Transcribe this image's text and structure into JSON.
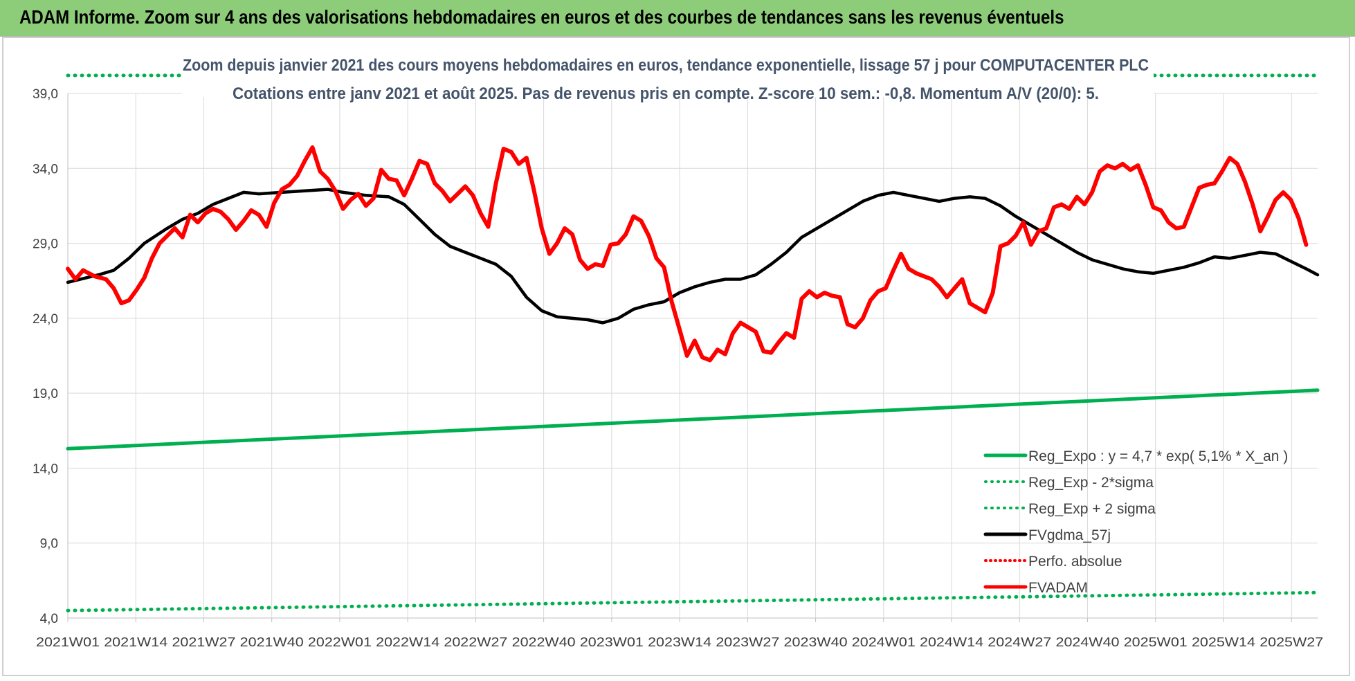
{
  "page_title": "ADAM Informe. Zoom sur 4 ans des valorisations hebdomadaires en euros et des courbes de tendances sans les revenus éventuels",
  "colors": {
    "header_bg": "#8dcd7a",
    "price": "#ff0000",
    "mma": "#000000",
    "regression": "#00b050",
    "axis_text": "#404040",
    "title_text": "#44546a"
  },
  "chart_data": {
    "type": "line",
    "title": "Zoom depuis janvier 2021 des cours moyens hebdomadaires en euros, tendance exponentielle, lissage 57 j pour COMPUTACENTER PLC",
    "subtitle": "Cotations entre janv 2021 et août 2025.  Pas de revenus pris en compte. Z-score 10 sem.: -0,8. Momentum A/V (20/0): 5.",
    "ylim": [
      4,
      39
    ],
    "yticks": [
      "4,0",
      "9,0",
      "14,0",
      "19,0",
      "24,0",
      "29,0",
      "34,0",
      "39,0"
    ],
    "xticks": [
      "2021W01",
      "2021W14",
      "2021W27",
      "2021W40",
      "2022W01",
      "2022W14",
      "2022W27",
      "2022W40",
      "2023W01",
      "2023W14",
      "2023W27",
      "2023W40",
      "2024W01",
      "2024W14",
      "2024W27",
      "2024W40",
      "2025W01",
      "2025W14",
      "2025W27"
    ],
    "grid": true,
    "legend_position": "bottom-right",
    "n_weeks": 240,
    "series": [
      {
        "name": "Reg_Expo : y = 4,7 * exp( 5,1% *  X_an )",
        "color": "#00b050",
        "style": "solid",
        "points": [
          [
            0,
            15.3
          ],
          [
            239,
            19.2
          ]
        ]
      },
      {
        "name": "Reg_Exp - 2*sigma",
        "color": "#00b050",
        "style": "dotted",
        "points": [
          [
            0,
            4.5
          ],
          [
            239,
            5.7
          ]
        ]
      },
      {
        "name": "Reg_Exp + 2 sigma",
        "color": "#00b050",
        "style": "dotted",
        "points": [
          [
            0,
            40.2
          ],
          [
            239,
            40.2
          ]
        ]
      },
      {
        "name": "FVgdma_57j",
        "color": "#000000",
        "style": "solid",
        "points": [
          [
            0,
            26.4
          ],
          [
            8,
            26.9
          ],
          [
            12,
            27.2
          ],
          [
            16,
            28.0
          ],
          [
            20,
            29.0
          ],
          [
            26,
            30.0
          ],
          [
            30,
            30.6
          ],
          [
            34,
            31.0
          ],
          [
            38,
            31.6
          ],
          [
            42,
            32.0
          ],
          [
            46,
            32.4
          ],
          [
            50,
            32.3
          ],
          [
            56,
            32.4
          ],
          [
            62,
            32.5
          ],
          [
            68,
            32.6
          ],
          [
            72,
            32.4
          ],
          [
            78,
            32.2
          ],
          [
            84,
            32.1
          ],
          [
            88,
            31.6
          ],
          [
            92,
            30.6
          ],
          [
            96,
            29.6
          ],
          [
            100,
            28.8
          ],
          [
            104,
            28.4
          ],
          [
            108,
            28.0
          ],
          [
            112,
            27.6
          ],
          [
            116,
            26.8
          ],
          [
            120,
            25.4
          ],
          [
            124,
            24.5
          ],
          [
            128,
            24.1
          ],
          [
            132,
            24.0
          ],
          [
            136,
            23.9
          ],
          [
            140,
            23.7
          ],
          [
            144,
            24.0
          ],
          [
            148,
            24.6
          ],
          [
            152,
            24.9
          ],
          [
            156,
            25.1
          ],
          [
            160,
            25.7
          ],
          [
            164,
            26.1
          ],
          [
            168,
            26.4
          ],
          [
            172,
            26.6
          ],
          [
            176,
            26.6
          ],
          [
            180,
            26.9
          ],
          [
            184,
            27.6
          ],
          [
            188,
            28.4
          ],
          [
            192,
            29.4
          ],
          [
            196,
            30.0
          ],
          [
            200,
            30.6
          ],
          [
            204,
            31.2
          ],
          [
            208,
            31.8
          ],
          [
            212,
            32.2
          ],
          [
            216,
            32.4
          ],
          [
            220,
            32.2
          ],
          [
            224,
            32.0
          ],
          [
            228,
            31.8
          ],
          [
            232,
            32.0
          ],
          [
            236,
            32.1
          ],
          [
            240,
            32.0
          ],
          [
            244,
            31.5
          ],
          [
            248,
            30.8
          ],
          [
            252,
            30.2
          ],
          [
            256,
            29.6
          ],
          [
            260,
            29.0
          ],
          [
            264,
            28.4
          ],
          [
            268,
            27.9
          ],
          [
            272,
            27.6
          ],
          [
            276,
            27.3
          ],
          [
            280,
            27.1
          ],
          [
            284,
            27.0
          ],
          [
            288,
            27.2
          ],
          [
            292,
            27.4
          ],
          [
            296,
            27.7
          ],
          [
            300,
            28.1
          ],
          [
            304,
            28.0
          ],
          [
            308,
            28.2
          ],
          [
            312,
            28.4
          ],
          [
            316,
            28.3
          ],
          [
            320,
            27.8
          ],
          [
            324,
            27.3
          ],
          [
            327,
            26.9
          ]
        ]
      },
      {
        "name": "FVADAM",
        "color": "#ff0000",
        "style": "solid",
        "points": [
          [
            0,
            27.3
          ],
          [
            2,
            26.6
          ],
          [
            4,
            27.2
          ],
          [
            7,
            26.8
          ],
          [
            10,
            26.6
          ],
          [
            12,
            26.0
          ],
          [
            14,
            25.0
          ],
          [
            16,
            25.2
          ],
          [
            18,
            25.9
          ],
          [
            20,
            26.7
          ],
          [
            22,
            28.0
          ],
          [
            24,
            29.0
          ],
          [
            26,
            29.5
          ],
          [
            28,
            30.0
          ],
          [
            30,
            29.4
          ],
          [
            32,
            30.9
          ],
          [
            34,
            30.4
          ],
          [
            36,
            31.0
          ],
          [
            38,
            31.3
          ],
          [
            40,
            31.1
          ],
          [
            42,
            30.6
          ],
          [
            44,
            29.9
          ],
          [
            46,
            30.5
          ],
          [
            48,
            31.2
          ],
          [
            50,
            30.9
          ],
          [
            52,
            30.1
          ],
          [
            54,
            31.7
          ],
          [
            56,
            32.6
          ],
          [
            58,
            32.9
          ],
          [
            60,
            33.5
          ],
          [
            62,
            34.5
          ],
          [
            64,
            35.4
          ],
          [
            66,
            33.8
          ],
          [
            68,
            33.3
          ],
          [
            70,
            32.5
          ],
          [
            72,
            31.3
          ],
          [
            74,
            31.9
          ],
          [
            76,
            32.3
          ],
          [
            78,
            31.5
          ],
          [
            80,
            32.0
          ],
          [
            82,
            33.9
          ],
          [
            84,
            33.3
          ],
          [
            86,
            33.2
          ],
          [
            88,
            32.2
          ],
          [
            90,
            33.3
          ],
          [
            92,
            34.5
          ],
          [
            94,
            34.3
          ],
          [
            96,
            33.0
          ],
          [
            98,
            32.5
          ],
          [
            100,
            31.8
          ],
          [
            102,
            32.3
          ],
          [
            104,
            32.8
          ],
          [
            106,
            32.2
          ],
          [
            108,
            31.0
          ],
          [
            110,
            30.1
          ],
          [
            112,
            33.0
          ],
          [
            114,
            35.3
          ],
          [
            116,
            35.1
          ],
          [
            118,
            34.3
          ],
          [
            120,
            34.7
          ],
          [
            122,
            32.5
          ],
          [
            124,
            30.0
          ],
          [
            126,
            28.3
          ],
          [
            128,
            29.0
          ],
          [
            130,
            30.0
          ],
          [
            132,
            29.6
          ],
          [
            134,
            27.9
          ],
          [
            136,
            27.3
          ],
          [
            138,
            27.6
          ],
          [
            140,
            27.5
          ],
          [
            142,
            28.9
          ],
          [
            144,
            29.0
          ],
          [
            146,
            29.6
          ],
          [
            148,
            30.8
          ],
          [
            150,
            30.5
          ],
          [
            152,
            29.5
          ],
          [
            154,
            28.0
          ],
          [
            156,
            27.4
          ],
          [
            158,
            25.1
          ],
          [
            160,
            23.3
          ],
          [
            162,
            21.5
          ],
          [
            164,
            22.5
          ],
          [
            166,
            21.4
          ],
          [
            168,
            21.2
          ],
          [
            170,
            21.9
          ],
          [
            172,
            21.6
          ],
          [
            174,
            23.0
          ],
          [
            176,
            23.7
          ],
          [
            178,
            23.4
          ],
          [
            180,
            23.1
          ],
          [
            182,
            21.8
          ],
          [
            184,
            21.7
          ],
          [
            186,
            22.4
          ],
          [
            188,
            23.0
          ],
          [
            190,
            22.7
          ],
          [
            192,
            25.3
          ],
          [
            194,
            25.8
          ],
          [
            196,
            25.4
          ],
          [
            198,
            25.7
          ],
          [
            200,
            25.5
          ],
          [
            202,
            25.4
          ],
          [
            204,
            23.6
          ],
          [
            206,
            23.4
          ],
          [
            208,
            24.0
          ],
          [
            210,
            25.2
          ],
          [
            212,
            25.8
          ],
          [
            214,
            26.0
          ],
          [
            216,
            27.2
          ],
          [
            218,
            28.3
          ],
          [
            220,
            27.3
          ],
          [
            222,
            27.0
          ],
          [
            224,
            26.8
          ],
          [
            226,
            26.6
          ],
          [
            228,
            26.1
          ],
          [
            230,
            25.4
          ],
          [
            232,
            26.0
          ],
          [
            234,
            26.6
          ],
          [
            236,
            25.0
          ],
          [
            238,
            24.7
          ],
          [
            240,
            24.4
          ],
          [
            242,
            25.7
          ],
          [
            244,
            28.8
          ],
          [
            246,
            29.0
          ],
          [
            248,
            29.5
          ],
          [
            250,
            30.4
          ],
          [
            252,
            28.9
          ],
          [
            254,
            29.8
          ],
          [
            256,
            30.0
          ],
          [
            258,
            31.4
          ],
          [
            260,
            31.6
          ],
          [
            262,
            31.3
          ],
          [
            264,
            32.1
          ],
          [
            266,
            31.6
          ],
          [
            268,
            32.4
          ],
          [
            270,
            33.8
          ],
          [
            272,
            34.2
          ],
          [
            274,
            34.0
          ],
          [
            276,
            34.3
          ],
          [
            278,
            33.9
          ],
          [
            280,
            34.2
          ],
          [
            282,
            32.9
          ],
          [
            284,
            31.4
          ],
          [
            286,
            31.2
          ],
          [
            288,
            30.4
          ],
          [
            290,
            30.0
          ],
          [
            292,
            30.1
          ],
          [
            294,
            31.4
          ],
          [
            296,
            32.7
          ],
          [
            298,
            32.9
          ],
          [
            300,
            33.0
          ],
          [
            302,
            33.8
          ],
          [
            304,
            34.7
          ],
          [
            306,
            34.3
          ],
          [
            308,
            33.1
          ],
          [
            310,
            31.6
          ],
          [
            312,
            29.8
          ],
          [
            314,
            30.8
          ],
          [
            316,
            31.9
          ],
          [
            318,
            32.4
          ],
          [
            320,
            31.9
          ],
          [
            322,
            30.7
          ],
          [
            324,
            28.9
          ]
        ]
      }
    ]
  }
}
